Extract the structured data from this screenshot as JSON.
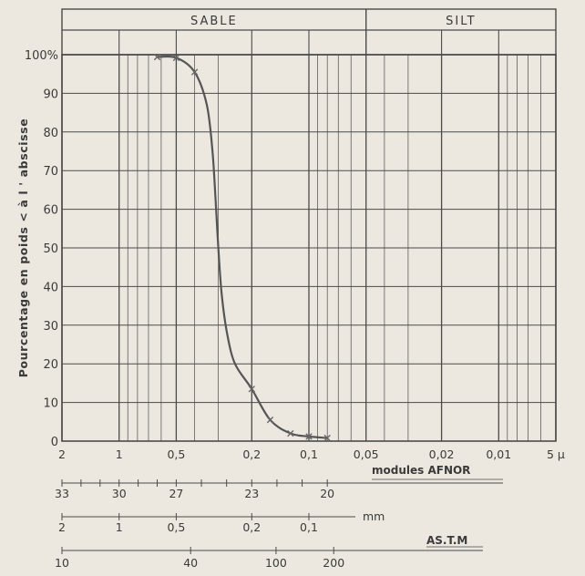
{
  "chart_data": {
    "type": "line",
    "title": "",
    "ylabel": "Pourcentage en poids < à l ' abscisse",
    "header": {
      "sable_label": "SABLE",
      "silt_label": "SILT"
    },
    "x_scale": "log",
    "x_direction": "decreasing",
    "xlim": [
      2,
      0.005
    ],
    "ylim": [
      0,
      100
    ],
    "x_tick_labels": [
      {
        "label": "2",
        "value": 2
      },
      {
        "label": "1",
        "value": 1
      },
      {
        "label": "0,5",
        "value": 0.5
      },
      {
        "label": "0,2",
        "value": 0.2
      },
      {
        "label": "0,1",
        "value": 0.1
      },
      {
        "label": "0,05",
        "value": 0.05
      },
      {
        "label": "0,02",
        "value": 0.02
      },
      {
        "label": "0,01",
        "value": 0.01
      },
      {
        "label": "5 µ",
        "value": 0.005
      }
    ],
    "y_ticks": [
      {
        "label": "0",
        "value": 0
      },
      {
        "label": "10",
        "value": 10
      },
      {
        "label": "20",
        "value": 20
      },
      {
        "label": "30",
        "value": 30
      },
      {
        "label": "40",
        "value": 40
      },
      {
        "label": "50",
        "value": 50
      },
      {
        "label": "60",
        "value": 60
      },
      {
        "label": "70",
        "value": 70
      },
      {
        "label": "80",
        "value": 80
      },
      {
        "label": "90",
        "value": 90
      },
      {
        "label": "100%",
        "value": 100
      }
    ],
    "grid": true,
    "series": [
      {
        "color": "#555555",
        "points": [
          {
            "x": 0.63,
            "y": 99.4
          },
          {
            "x": 0.5,
            "y": 99.2
          },
          {
            "x": 0.4,
            "y": 95.5
          },
          {
            "x": 0.2,
            "y": 13.5
          },
          {
            "x": 0.16,
            "y": 5.5
          },
          {
            "x": 0.125,
            "y": 2
          },
          {
            "x": 0.1,
            "y": 1.2
          },
          {
            "x": 0.08,
            "y": 0.8
          }
        ],
        "curve": [
          {
            "x": 0.63,
            "y": 99.4
          },
          {
            "x": 0.5,
            "y": 99.2
          },
          {
            "x": 0.4,
            "y": 95.5
          },
          {
            "x": 0.345,
            "y": 87
          },
          {
            "x": 0.322,
            "y": 75
          },
          {
            "x": 0.31,
            "y": 62
          },
          {
            "x": 0.3,
            "y": 50
          },
          {
            "x": 0.288,
            "y": 38
          },
          {
            "x": 0.27,
            "y": 28
          },
          {
            "x": 0.245,
            "y": 20
          },
          {
            "x": 0.2,
            "y": 13.5
          },
          {
            "x": 0.16,
            "y": 5.5
          },
          {
            "x": 0.125,
            "y": 2
          },
          {
            "x": 0.1,
            "y": 1.2
          },
          {
            "x": 0.08,
            "y": 0.8
          }
        ]
      }
    ],
    "scales": {
      "afnor": {
        "label": "modules AFNOR",
        "ticks": [
          {
            "label": "33",
            "value": 2
          },
          {
            "label": "30",
            "value": 1
          },
          {
            "label": "27",
            "value": 0.5
          },
          {
            "label": "23",
            "value": 0.2
          },
          {
            "label": "20",
            "value": 0.08
          }
        ]
      },
      "mm": {
        "label": "mm",
        "ticks": [
          {
            "label": "2",
            "value": 2
          },
          {
            "label": "1",
            "value": 1
          },
          {
            "label": "0,5",
            "value": 0.5
          },
          {
            "label": "0,2",
            "value": 0.2
          },
          {
            "label": "0,1",
            "value": 0.1
          }
        ]
      },
      "astm": {
        "label": "AS.T.M",
        "ticks": [
          {
            "label": "10",
            "value": 2
          },
          {
            "label": "40",
            "value": 0.42
          },
          {
            "label": "100",
            "value": 0.149
          },
          {
            "label": "200",
            "value": 0.074
          }
        ]
      }
    }
  }
}
